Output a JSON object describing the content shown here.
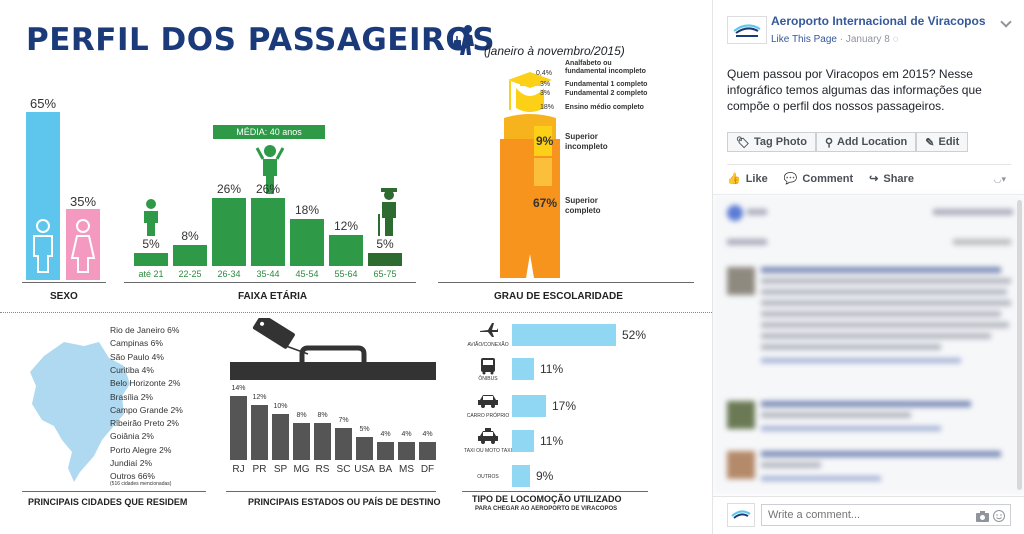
{
  "infographic": {
    "title": "PERFIL DOS PASSAGEIROS",
    "subtitle": "(janeiro à novembro/2015)",
    "colors": {
      "navy": "#1b3a7a",
      "blue": "#5ec6ec",
      "pink": "#f49ac1",
      "green": "#2e9a47",
      "orange": "#f7941d",
      "yellow": "#fbd016",
      "gray": "#555555"
    },
    "sexo": {
      "header": "SEXO",
      "male_pct": "65%",
      "female_pct": "35%"
    },
    "faixa": {
      "header": "FAIXA ETÁRIA",
      "media": "MÉDIA: 40 anos",
      "bars": [
        {
          "label": "até 21",
          "pct": "5%",
          "value": 5
        },
        {
          "label": "22-25",
          "pct": "8%",
          "value": 8
        },
        {
          "label": "26-34",
          "pct": "26%",
          "value": 26
        },
        {
          "label": "35-44",
          "pct": "26%",
          "value": 26
        },
        {
          "label": "45-54",
          "pct": "18%",
          "value": 18
        },
        {
          "label": "55-64",
          "pct": "12%",
          "value": 12
        },
        {
          "label": "65-75",
          "pct": "5%",
          "value": 5
        }
      ]
    },
    "escolaridade": {
      "header": "GRAU DE ESCOLARIDADE",
      "items": [
        {
          "pct": "0,4%",
          "label": "Analfabeto ou\nfundamental incompleto"
        },
        {
          "pct": "3%",
          "label": "Fundamental 1 completo"
        },
        {
          "pct": "3%",
          "label": "Fundamental 2 completo"
        },
        {
          "pct": "18%",
          "label": "Ensino médio completo"
        },
        {
          "pct": "9%",
          "label": "Superior\nincompleto"
        },
        {
          "pct": "67%",
          "label": "Superior\ncompleto"
        }
      ]
    },
    "cidades": {
      "header": "PRINCIPAIS CIDADES QUE RESIDEM",
      "items": [
        "Rio de Janeiro 6%",
        "Campinas 6%",
        "São Paulo 4%",
        "Curitiba 4%",
        "Belo Horizonte 2%",
        "Brasília 2%",
        "Campo Grande 2%",
        "Ribeirão Preto 2%",
        "Goiânia 2%",
        "Porto Alegre 2%",
        "Jundiaí 2%",
        "Outros 66%"
      ],
      "note": "(516 cidades mencionadas)"
    },
    "estados": {
      "header": "PRINCIPAIS ESTADOS OU PAÍS DE DESTINO",
      "bars": [
        {
          "label": "RJ",
          "pct": "14%",
          "value": 14
        },
        {
          "label": "PR",
          "pct": "12%",
          "value": 12
        },
        {
          "label": "SP",
          "pct": "10%",
          "value": 10
        },
        {
          "label": "MG",
          "pct": "8%",
          "value": 8
        },
        {
          "label": "RS",
          "pct": "8%",
          "value": 8
        },
        {
          "label": "SC",
          "pct": "7%",
          "value": 7
        },
        {
          "label": "USA",
          "pct": "5%",
          "value": 5
        },
        {
          "label": "BA",
          "pct": "4%",
          "value": 4
        },
        {
          "label": "MS",
          "pct": "4%",
          "value": 4
        },
        {
          "label": "DF",
          "pct": "4%",
          "value": 4
        }
      ]
    },
    "locomocao": {
      "header": "TIPO DE LOCOMOÇÃO UTILIZADO",
      "subheader": "PARA CHEGAR AO AEROPORTO DE VIRACOPOS",
      "items": [
        {
          "label": "AVIÃO/CONEXÃO",
          "pct": "52%",
          "value": 52,
          "icon": "airplane-icon"
        },
        {
          "label": "ÔNIBUS",
          "pct": "11%",
          "value": 11,
          "icon": "bus-icon"
        },
        {
          "label": "CARRO PRÓPRIO",
          "pct": "17%",
          "value": 17,
          "icon": "car-icon"
        },
        {
          "label": "TAXI OU MOTO TAXI",
          "pct": "11%",
          "value": 11,
          "icon": "taxi-icon"
        },
        {
          "label": "OUTROS",
          "pct": "9%",
          "value": 9,
          "icon": ""
        }
      ]
    }
  },
  "fb": {
    "page_name": "Aeroporto Internacional de Viracopos",
    "like_page": "Like This Page",
    "date": "January 8",
    "post_text": "Quem passou por Viracopos em 2015? Nesse infográfico temos algumas das informações que compõe o perfil dos nossos passageiros.",
    "toolbar": {
      "tag": "Tag Photo",
      "location": "Add Location",
      "edit": "Edit"
    },
    "actions": {
      "like": "Like",
      "comment": "Comment",
      "share": "Share"
    },
    "write_placeholder": "Write a comment..."
  }
}
